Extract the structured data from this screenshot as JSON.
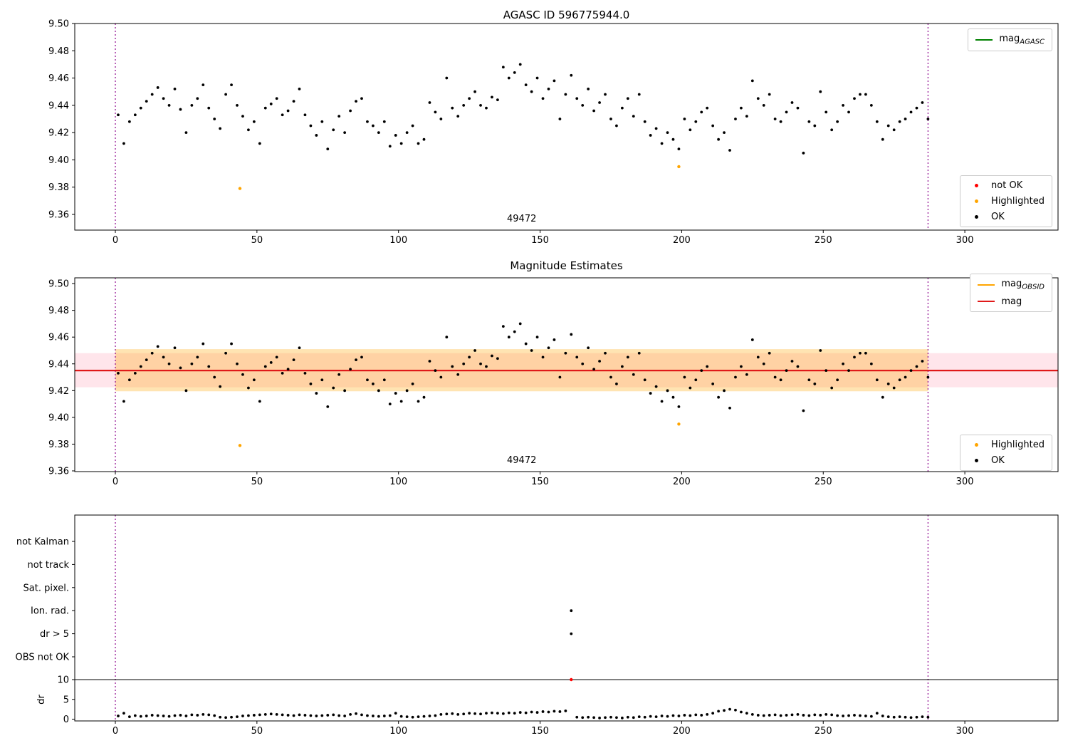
{
  "figure": {
    "plot1_title": "AGASC ID 596775944.0",
    "plot2_title": "Magnitude Estimates"
  },
  "colors": {
    "ok": "#000000",
    "not_ok": "#ff0000",
    "highlighted": "#ffa500",
    "mag_agasc": "#008000",
    "mag_obsid": "#ffa500",
    "mag_line": "#e01919",
    "vline": "#8b008b",
    "band_pink": "rgba(255,80,120,0.15)",
    "band_orange": "rgba(255,165,0,0.3)",
    "threshold_line": "#000000"
  },
  "legends": {
    "p1_top": [
      {
        "marker": "line",
        "color": "#008000",
        "label": "mag",
        "sub": "AGASC"
      }
    ],
    "p1_bottom": [
      {
        "marker": "dot",
        "color": "#ff0000",
        "label": "not OK"
      },
      {
        "marker": "dot",
        "color": "#ffa500",
        "label": "Highlighted"
      },
      {
        "marker": "dot",
        "color": "#000000",
        "label": "OK"
      }
    ],
    "p2_top": [
      {
        "marker": "line",
        "color": "#ffa500",
        "label": "mag",
        "sub": "OBSID"
      },
      {
        "marker": "line",
        "color": "#e01919",
        "label": "mag"
      }
    ],
    "p2_bottom": [
      {
        "marker": "dot",
        "color": "#ffa500",
        "label": "Highlighted"
      },
      {
        "marker": "dot",
        "color": "#000000",
        "label": "OK"
      }
    ]
  },
  "chart_data": [
    {
      "type": "scatter",
      "title": "AGASC ID 596775944.0",
      "xlabel": "",
      "ylabel": "",
      "xlim": [
        -14.3,
        333
      ],
      "ylim": [
        9.3485,
        9.5
      ],
      "xticks": [
        0,
        50,
        100,
        150,
        200,
        250,
        300
      ],
      "yticks": [
        9.36,
        9.38,
        9.4,
        9.42,
        9.44,
        9.46,
        9.48,
        9.5
      ],
      "vlines": [
        0,
        287
      ],
      "annotation": {
        "text": "49472",
        "x": 143.5
      },
      "series": [
        {
          "name": "OK",
          "color": "#000000",
          "x_start": 1,
          "x_step": 2,
          "y": [
            9.433,
            9.412,
            9.428,
            9.433,
            9.438,
            9.443,
            9.448,
            9.453,
            9.445,
            9.44,
            9.452,
            9.437,
            9.42,
            9.44,
            9.445,
            9.455,
            9.438,
            9.43,
            9.423,
            9.448,
            9.455,
            9.44,
            9.432,
            9.422,
            9.428,
            9.412,
            9.438,
            9.441,
            9.445,
            9.433,
            9.436,
            9.443,
            9.452,
            9.433,
            9.425,
            9.418,
            9.428,
            9.408,
            9.422,
            9.432,
            9.42,
            9.436,
            9.443,
            9.445,
            9.428,
            9.425,
            9.42,
            9.428,
            9.41,
            9.418,
            9.412,
            9.42,
            9.425,
            9.412,
            9.415,
            9.442,
            9.435,
            9.43,
            9.46,
            9.438,
            9.432,
            9.44,
            9.445,
            9.45,
            9.44,
            9.438,
            9.446,
            9.444,
            9.468,
            9.46,
            9.464,
            9.47,
            9.455,
            9.45,
            9.46,
            9.445,
            9.452,
            9.458,
            9.43,
            9.448,
            9.462,
            9.445,
            9.44,
            9.452,
            9.436,
            9.442,
            9.448,
            9.43,
            9.425,
            9.438,
            9.445,
            9.432,
            9.448,
            9.428,
            9.418,
            9.423,
            9.412,
            9.42,
            9.415,
            9.408,
            9.43,
            9.422,
            9.428,
            9.435,
            9.438,
            9.425,
            9.415,
            9.42,
            9.407,
            9.43,
            9.438,
            9.432,
            9.458,
            9.445,
            9.44,
            9.448,
            9.43,
            9.428,
            9.435,
            9.442,
            9.438,
            9.405,
            9.428,
            9.425,
            9.45,
            9.435,
            9.422,
            9.428,
            9.44,
            9.435,
            9.445,
            9.448,
            9.448,
            9.44,
            9.428,
            9.415,
            9.425,
            9.422,
            9.428,
            9.43,
            9.435,
            9.438,
            9.442,
            9.43
          ]
        },
        {
          "name": "Highlighted",
          "color": "#ffa500",
          "points": [
            [
              44,
              9.379
            ],
            [
              199,
              9.395
            ]
          ]
        },
        {
          "name": "not OK",
          "color": "#ff0000",
          "points": []
        }
      ],
      "legend_top": [
        "mag_AGASC"
      ],
      "legend_bottom": [
        "not OK",
        "Highlighted",
        "OK"
      ]
    },
    {
      "type": "scatter",
      "title": "Magnitude Estimates",
      "xlabel": "",
      "ylabel": "",
      "xlim": [
        -14.3,
        333
      ],
      "ylim": [
        9.3595,
        9.5043
      ],
      "xticks": [
        0,
        50,
        100,
        150,
        200,
        250,
        300
      ],
      "yticks": [
        9.36,
        9.38,
        9.4,
        9.42,
        9.44,
        9.46,
        9.48,
        9.5
      ],
      "vlines": [
        0,
        287
      ],
      "hline": 9.435,
      "bands": [
        {
          "name": "mag-err-band",
          "y_range": [
            9.4225,
            9.448
          ],
          "color": "rgba(255,80,120,0.15)"
        },
        {
          "name": "obsid-err-band",
          "x_range": [
            0,
            287
          ],
          "y_range": [
            9.4195,
            9.451
          ],
          "color": "rgba(255,165,0,0.3)"
        }
      ],
      "annotation": {
        "text": "49472",
        "x": 143.5
      },
      "series_from": 0,
      "legend_top": [
        "mag_OBSID",
        "mag"
      ],
      "legend_bottom": [
        "Highlighted",
        "OK"
      ]
    },
    {
      "type": "flags",
      "categories": [
        "not Kalman",
        "not track",
        "Sat. pixel.",
        "Ion. rad.",
        "dr > 5",
        "OBS not OK"
      ],
      "flag_points": [
        [
          161,
          "Ion. rad."
        ],
        [
          161,
          "dr > 5"
        ]
      ],
      "xticks": [
        0,
        50,
        100,
        150,
        200,
        250,
        300
      ],
      "vlines": [
        0,
        287
      ],
      "dr": {
        "ylabel": "dr",
        "yticks": [
          0,
          5,
          10
        ],
        "threshold": 10,
        "series": {
          "name": "dr",
          "color": "#000000",
          "x_start": 1,
          "x_step": 2,
          "y": [
            0.8,
            1.5,
            0.6,
            0.9,
            0.7,
            0.8,
            1.0,
            0.9,
            0.8,
            0.7,
            0.9,
            1.0,
            0.8,
            1.1,
            1.0,
            1.2,
            1.1,
            0.9,
            0.5,
            0.4,
            0.5,
            0.6,
            0.8,
            0.9,
            1.0,
            1.1,
            1.2,
            1.3,
            1.2,
            1.1,
            1.0,
            0.9,
            1.1,
            1.0,
            0.9,
            0.8,
            0.9,
            1.0,
            1.1,
            0.9,
            0.8,
            1.2,
            1.4,
            1.1,
            0.9,
            0.8,
            0.7,
            0.8,
            0.9,
            1.5,
            0.7,
            0.6,
            0.5,
            0.6,
            0.7,
            0.8,
            0.9,
            1.2,
            1.3,
            1.4,
            1.2,
            1.3,
            1.5,
            1.4,
            1.3,
            1.5,
            1.6,
            1.5,
            1.4,
            1.6,
            1.5,
            1.7,
            1.6,
            1.8,
            1.7,
            1.9,
            1.8,
            2.0,
            1.9,
            2.1,
            null,
            0.5,
            0.4,
            0.5,
            0.4,
            0.3,
            0.4,
            0.5,
            0.4,
            0.3,
            0.5,
            0.4,
            0.6,
            0.5,
            0.7,
            0.6,
            0.8,
            0.7,
            0.9,
            0.8,
            1.0,
            0.9,
            1.1,
            1.0,
            1.2,
            1.5,
            2.0,
            2.2,
            2.5,
            2.3,
            1.8,
            1.5,
            1.2,
            1.0,
            0.9,
            1.0,
            1.1,
            0.9,
            1.0,
            1.1,
            1.2,
            1.0,
            0.9,
            1.1,
            1.0,
            1.2,
            1.1,
            0.9,
            0.8,
            0.9,
            1.0,
            0.9,
            0.8,
            0.7,
            1.5,
            0.8,
            0.6,
            0.5,
            0.6,
            0.5,
            0.4,
            0.5,
            0.6,
            0.5
          ]
        },
        "outliers": [
          [
            161,
            10
          ]
        ]
      }
    }
  ]
}
